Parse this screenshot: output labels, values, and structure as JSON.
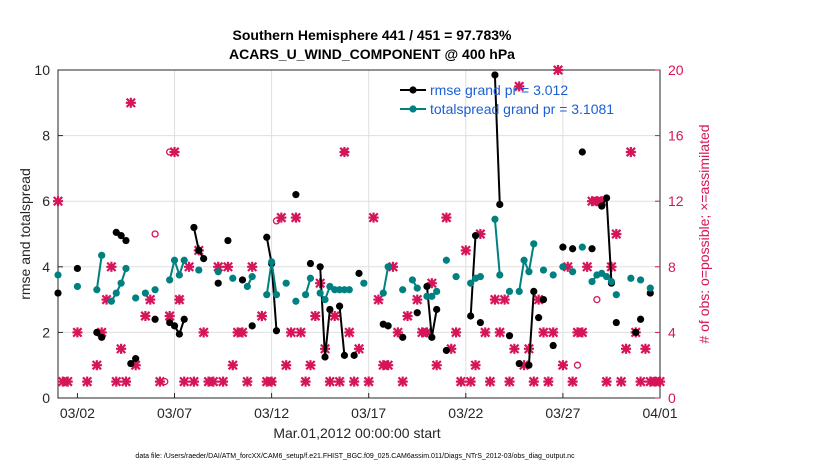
{
  "chart_data": {
    "type": "line",
    "title": "Southern Hemisphere 441 / 451 = 97.783%",
    "subtitle": "ACARS_U_WIND_COMPONENT @ 400 hPa",
    "xlabel": "Mar.01,2012 00:00:00 start",
    "ylabel": "rmse and totalspread",
    "ylabel_right": "# of obs: o=possible; ×=assimilated",
    "footer": "data file: /Users/raeder/DAI/ATM_forcXX/CAM6_setup/f.e21.FHIST_BGC.f09_025.CAM6assim.011/Diags_NTrS_2012-03/obs_diag_output.nc",
    "xlim": [
      1,
      32
    ],
    "ylim": [
      0,
      10
    ],
    "ylim_right": [
      0,
      20
    ],
    "x_ticks": [
      2,
      7,
      12,
      17,
      22,
      27,
      32
    ],
    "x_tick_labels": [
      "03/02",
      "03/07",
      "03/12",
      "03/17",
      "03/22",
      "03/27",
      "04/01"
    ],
    "y_ticks": [
      0,
      2,
      4,
      6,
      8,
      10
    ],
    "y_tick_labels": [
      "0",
      "2",
      "4",
      "6",
      "8",
      "10"
    ],
    "y_right_ticks": [
      0,
      4,
      8,
      12,
      16,
      20
    ],
    "y_right_tick_labels": [
      "0",
      "4",
      "8",
      "12",
      "16",
      "20"
    ],
    "grid": true,
    "legend_position": "top-right",
    "colors": {
      "rmse": "#000000",
      "totalspread": "#008080",
      "obs": "#d6145a",
      "legend_text": "#1a5fd6",
      "grid": "#dfdfdf"
    },
    "series": [
      {
        "name": "rmse grand pr = 3.012",
        "style": "black line with filled circles",
        "segments": [
          [
            [
              1.0,
              3.2
            ]
          ],
          [
            [
              2.0,
              3.95
            ]
          ],
          [
            [
              3.0,
              2.0
            ],
            [
              3.25,
              1.85
            ]
          ],
          [
            [
              4.0,
              5.05
            ],
            [
              4.25,
              4.95
            ],
            [
              4.5,
              4.8
            ]
          ],
          [
            [
              4.75,
              1.05
            ],
            [
              5.0,
              1.2
            ]
          ],
          [
            [
              6.0,
              2.4
            ]
          ],
          [
            [
              6.75,
              2.3
            ],
            [
              7.0,
              2.2
            ],
            [
              7.25,
              1.95
            ],
            [
              7.5,
              2.4
            ]
          ],
          [
            [
              8.0,
              5.2
            ],
            [
              8.25,
              4.5
            ],
            [
              8.5,
              4.25
            ]
          ],
          [
            [
              9.25,
              3.5
            ]
          ],
          [
            [
              9.75,
              4.8
            ]
          ],
          [
            [
              10.5,
              3.6
            ]
          ],
          [
            [
              11.0,
              2.2
            ]
          ],
          [
            [
              11.75,
              4.9
            ],
            [
              12.0,
              4.1
            ],
            [
              12.25,
              2.05
            ]
          ],
          [
            [
              13.25,
              6.2
            ]
          ],
          [
            [
              14.0,
              4.1
            ]
          ],
          [
            [
              14.5,
              4.0
            ],
            [
              14.75,
              1.25
            ],
            [
              15.0,
              2.7
            ]
          ],
          [
            [
              15.5,
              2.8
            ],
            [
              15.75,
              1.3
            ]
          ],
          [
            [
              16.25,
              1.3
            ]
          ],
          [
            [
              16.5,
              3.8
            ]
          ],
          [
            [
              17.75,
              2.25
            ],
            [
              18.0,
              2.2
            ]
          ],
          [
            [
              18.75,
              1.85
            ]
          ],
          [
            [
              19.5,
              2.6
            ]
          ],
          [
            [
              20.0,
              3.4
            ],
            [
              20.25,
              1.85
            ],
            [
              20.5,
              2.7
            ]
          ],
          [
            [
              21.0,
              1.45
            ]
          ],
          [
            [
              22.25,
              2.5
            ],
            [
              22.5,
              4.95
            ]
          ],
          [
            [
              22.75,
              2.3
            ]
          ],
          [
            [
              23.5,
              9.85
            ],
            [
              23.75,
              5.9
            ]
          ],
          [
            [
              24.25,
              1.9
            ]
          ],
          [
            [
              24.75,
              1.05
            ]
          ],
          [
            [
              25.25,
              1.0
            ],
            [
              25.5,
              3.25
            ]
          ],
          [
            [
              25.75,
              2.45
            ]
          ],
          [
            [
              26.0,
              3.0
            ]
          ],
          [
            [
              26.5,
              1.6
            ]
          ],
          [
            [
              27.0,
              4.6
            ]
          ],
          [
            [
              27.5,
              4.55
            ]
          ],
          [
            [
              28.0,
              7.5
            ]
          ],
          [
            [
              28.5,
              4.55
            ]
          ],
          [
            [
              29.0,
              5.85
            ],
            [
              29.25,
              6.1
            ],
            [
              29.5,
              3.5
            ]
          ],
          [
            [
              29.75,
              2.3
            ]
          ],
          [
            [
              30.75,
              2.0
            ]
          ],
          [
            [
              31.0,
              2.4
            ]
          ],
          [
            [
              31.5,
              3.2
            ]
          ]
        ]
      },
      {
        "name": "totalspread grand pr = 3.1081",
        "style": "teal line with filled circles",
        "segments": [
          [
            [
              1.0,
              3.75
            ]
          ],
          [
            [
              2.0,
              3.4
            ]
          ],
          [
            [
              3.0,
              3.3
            ],
            [
              3.25,
              4.35
            ]
          ],
          [
            [
              3.75,
              2.95
            ],
            [
              4.0,
              3.2
            ],
            [
              4.25,
              3.5
            ],
            [
              4.5,
              3.95
            ]
          ],
          [
            [
              5.0,
              3.05
            ]
          ],
          [
            [
              5.5,
              3.2
            ]
          ],
          [
            [
              6.0,
              3.3
            ]
          ],
          [
            [
              6.75,
              3.6
            ],
            [
              7.0,
              4.2
            ],
            [
              7.25,
              3.75
            ],
            [
              7.5,
              4.2
            ]
          ],
          [
            [
              8.25,
              3.9
            ]
          ],
          [
            [
              9.25,
              3.85
            ]
          ],
          [
            [
              10.0,
              3.65
            ]
          ],
          [
            [
              10.75,
              3.4
            ],
            [
              11.0,
              3.7
            ]
          ],
          [
            [
              11.75,
              3.15
            ],
            [
              12.0,
              4.15
            ],
            [
              12.25,
              3.15
            ]
          ],
          [
            [
              12.75,
              3.5
            ]
          ],
          [
            [
              13.25,
              2.95
            ]
          ],
          [
            [
              13.75,
              3.15
            ],
            [
              14.0,
              3.65
            ]
          ],
          [
            [
              14.5,
              3.2
            ],
            [
              14.75,
              3.0
            ],
            [
              15.0,
              3.4
            ],
            [
              15.25,
              3.3
            ]
          ],
          [
            [
              15.5,
              3.3
            ],
            [
              15.75,
              3.3
            ]
          ],
          [
            [
              16.0,
              3.3
            ]
          ],
          [
            [
              16.75,
              3.5
            ]
          ],
          [
            [
              17.75,
              3.2
            ],
            [
              18.0,
              4.0
            ]
          ],
          [
            [
              18.75,
              3.3
            ]
          ],
          [
            [
              19.25,
              3.6
            ],
            [
              19.5,
              3.35
            ]
          ],
          [
            [
              20.0,
              3.1
            ],
            [
              20.25,
              3.1
            ],
            [
              20.5,
              3.25
            ]
          ],
          [
            [
              21.0,
              4.2
            ]
          ],
          [
            [
              21.5,
              3.7
            ]
          ],
          [
            [
              22.25,
              3.5
            ],
            [
              22.5,
              3.65
            ]
          ],
          [
            [
              22.75,
              3.7
            ]
          ],
          [
            [
              23.5,
              5.45
            ],
            [
              23.75,
              3.75
            ]
          ],
          [
            [
              24.25,
              3.25
            ]
          ],
          [
            [
              24.75,
              3.25
            ],
            [
              25.0,
              4.2
            ],
            [
              25.25,
              3.85
            ],
            [
              25.5,
              4.7
            ]
          ],
          [
            [
              26.0,
              3.9
            ]
          ],
          [
            [
              26.5,
              3.75
            ]
          ],
          [
            [
              27.0,
              4.0
            ]
          ],
          [
            [
              27.5,
              3.85
            ]
          ],
          [
            [
              28.0,
              4.6
            ]
          ],
          [
            [
              28.5,
              3.55
            ],
            [
              28.75,
              3.75
            ]
          ],
          [
            [
              29.0,
              3.8
            ],
            [
              29.25,
              3.7
            ],
            [
              29.5,
              3.55
            ]
          ],
          [
            [
              29.75,
              3.15
            ]
          ],
          [
            [
              30.5,
              3.65
            ]
          ],
          [
            [
              31.0,
              3.6
            ]
          ],
          [
            [
              31.5,
              3.35
            ]
          ]
        ]
      }
    ],
    "obs_possible": [
      [
        6.75,
        15.0
      ],
      [
        6.0,
        10.0
      ],
      [
        12.25,
        10.8
      ],
      [
        15.75,
        15.0
      ],
      [
        27.75,
        2.0
      ],
      [
        28.75,
        6.0
      ],
      [
        7.25,
        6.0
      ],
      [
        6.5,
        1.0
      ],
      [
        12.0,
        1.0
      ]
    ],
    "obs_assimilated": [
      [
        1.0,
        12.0
      ],
      [
        1.25,
        1.0
      ],
      [
        1.5,
        1.0
      ],
      [
        2.0,
        4.0
      ],
      [
        2.5,
        1.0
      ],
      [
        3.0,
        2.0
      ],
      [
        3.25,
        4.0
      ],
      [
        3.5,
        6.0
      ],
      [
        3.75,
        8.0
      ],
      [
        4.0,
        1.0
      ],
      [
        4.25,
        3.0
      ],
      [
        4.5,
        1.0
      ],
      [
        4.75,
        18.0
      ],
      [
        5.0,
        2.0
      ],
      [
        5.5,
        5.0
      ],
      [
        5.75,
        6.0
      ],
      [
        6.25,
        1.0
      ],
      [
        6.75,
        5.0
      ],
      [
        7.0,
        15.0
      ],
      [
        7.25,
        6.0
      ],
      [
        7.5,
        1.0
      ],
      [
        7.75,
        8.0
      ],
      [
        8.0,
        1.0
      ],
      [
        8.25,
        9.0
      ],
      [
        8.5,
        4.0
      ],
      [
        8.75,
        1.0
      ],
      [
        9.0,
        1.0
      ],
      [
        9.25,
        8.0
      ],
      [
        9.5,
        1.0
      ],
      [
        9.75,
        8.0
      ],
      [
        10.0,
        2.0
      ],
      [
        10.25,
        4.0
      ],
      [
        10.5,
        4.0
      ],
      [
        10.75,
        1.0
      ],
      [
        11.0,
        8.0
      ],
      [
        11.5,
        5.0
      ],
      [
        11.75,
        1.0
      ],
      [
        12.0,
        1.0
      ],
      [
        12.5,
        11.0
      ],
      [
        12.75,
        2.0
      ],
      [
        13.0,
        4.0
      ],
      [
        13.25,
        11.0
      ],
      [
        13.5,
        4.0
      ],
      [
        13.75,
        1.0
      ],
      [
        14.0,
        2.0
      ],
      [
        14.25,
        5.0
      ],
      [
        14.5,
        7.0
      ],
      [
        14.75,
        3.0
      ],
      [
        15.0,
        1.0
      ],
      [
        15.25,
        5.0
      ],
      [
        15.5,
        1.0
      ],
      [
        15.75,
        15.0
      ],
      [
        16.0,
        4.0
      ],
      [
        16.25,
        1.0
      ],
      [
        16.5,
        3.0
      ],
      [
        17.0,
        1.0
      ],
      [
        17.25,
        11.0
      ],
      [
        17.5,
        6.0
      ],
      [
        17.75,
        2.0
      ],
      [
        18.0,
        2.0
      ],
      [
        18.25,
        8.0
      ],
      [
        18.5,
        4.0
      ],
      [
        18.75,
        1.0
      ],
      [
        19.0,
        5.0
      ],
      [
        19.5,
        6.0
      ],
      [
        19.75,
        4.0
      ],
      [
        20.0,
        4.0
      ],
      [
        20.25,
        7.0
      ],
      [
        20.5,
        2.0
      ],
      [
        21.0,
        11.0
      ],
      [
        21.25,
        3.0
      ],
      [
        21.5,
        4.0
      ],
      [
        21.75,
        1.0
      ],
      [
        22.0,
        9.0
      ],
      [
        22.25,
        1.0
      ],
      [
        22.5,
        2.0
      ],
      [
        22.75,
        10.0
      ],
      [
        23.0,
        4.0
      ],
      [
        23.25,
        1.0
      ],
      [
        23.5,
        6.0
      ],
      [
        23.75,
        4.0
      ],
      [
        24.0,
        6.0
      ],
      [
        24.25,
        1.0
      ],
      [
        24.5,
        3.0
      ],
      [
        24.75,
        19.0
      ],
      [
        25.0,
        2.0
      ],
      [
        25.25,
        3.0
      ],
      [
        25.5,
        1.0
      ],
      [
        25.75,
        6.0
      ],
      [
        26.0,
        4.0
      ],
      [
        26.25,
        1.0
      ],
      [
        26.5,
        4.0
      ],
      [
        26.75,
        20.0
      ],
      [
        27.0,
        2.0
      ],
      [
        27.25,
        8.0
      ],
      [
        27.5,
        1.0
      ],
      [
        27.75,
        4.0
      ],
      [
        28.0,
        4.0
      ],
      [
        28.25,
        8.0
      ],
      [
        28.5,
        12.0
      ],
      [
        28.75,
        12.0
      ],
      [
        29.0,
        12.0
      ],
      [
        29.25,
        1.0
      ],
      [
        29.5,
        8.0
      ],
      [
        29.75,
        10.0
      ],
      [
        30.0,
        1.0
      ],
      [
        30.25,
        3.0
      ],
      [
        30.5,
        15.0
      ],
      [
        30.75,
        4.0
      ],
      [
        31.0,
        1.0
      ],
      [
        31.25,
        3.0
      ],
      [
        31.5,
        1.0
      ],
      [
        31.75,
        1.0
      ],
      [
        32.0,
        1.0
      ]
    ]
  }
}
